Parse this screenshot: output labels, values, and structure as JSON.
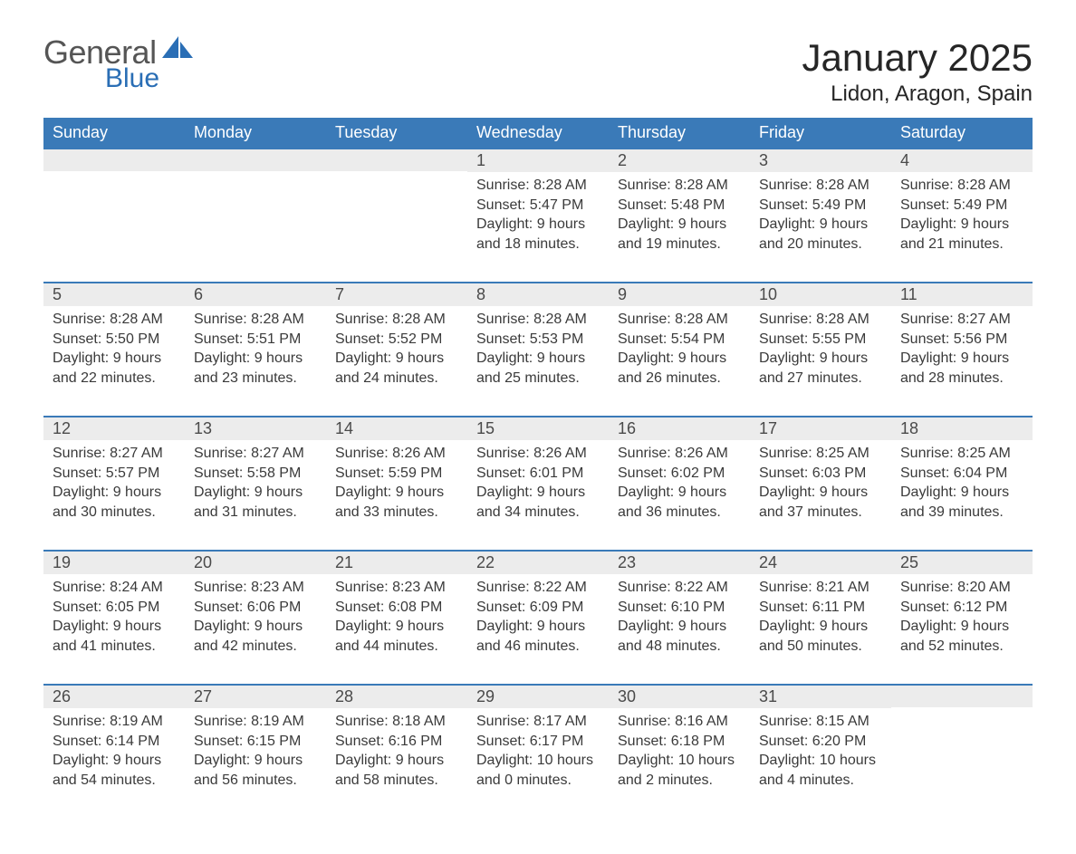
{
  "logo": {
    "general": "General",
    "blue": "Blue"
  },
  "title": "January 2025",
  "subtitle": "Lidon, Aragon, Spain",
  "styling": {
    "header_bg": "#3a7ab8",
    "header_text": "#ffffff",
    "daynum_bg": "#ececec",
    "week_border": "#3a7ab8",
    "title_fontsize": 42,
    "subtitle_fontsize": 24,
    "dayheader_fontsize": 18,
    "cell_fontsize": 16,
    "logo_blue_color": "#2a6eb5",
    "logo_gray_color": "#555555",
    "background": "#ffffff"
  },
  "day_names": [
    "Sunday",
    "Monday",
    "Tuesday",
    "Wednesday",
    "Thursday",
    "Friday",
    "Saturday"
  ],
  "weeks": [
    [
      {
        "day": "",
        "sunrise": "",
        "sunset": "",
        "daylight1": "",
        "daylight2": ""
      },
      {
        "day": "",
        "sunrise": "",
        "sunset": "",
        "daylight1": "",
        "daylight2": ""
      },
      {
        "day": "",
        "sunrise": "",
        "sunset": "",
        "daylight1": "",
        "daylight2": ""
      },
      {
        "day": "1",
        "sunrise": "Sunrise: 8:28 AM",
        "sunset": "Sunset: 5:47 PM",
        "daylight1": "Daylight: 9 hours",
        "daylight2": "and 18 minutes."
      },
      {
        "day": "2",
        "sunrise": "Sunrise: 8:28 AM",
        "sunset": "Sunset: 5:48 PM",
        "daylight1": "Daylight: 9 hours",
        "daylight2": "and 19 minutes."
      },
      {
        "day": "3",
        "sunrise": "Sunrise: 8:28 AM",
        "sunset": "Sunset: 5:49 PM",
        "daylight1": "Daylight: 9 hours",
        "daylight2": "and 20 minutes."
      },
      {
        "day": "4",
        "sunrise": "Sunrise: 8:28 AM",
        "sunset": "Sunset: 5:49 PM",
        "daylight1": "Daylight: 9 hours",
        "daylight2": "and 21 minutes."
      }
    ],
    [
      {
        "day": "5",
        "sunrise": "Sunrise: 8:28 AM",
        "sunset": "Sunset: 5:50 PM",
        "daylight1": "Daylight: 9 hours",
        "daylight2": "and 22 minutes."
      },
      {
        "day": "6",
        "sunrise": "Sunrise: 8:28 AM",
        "sunset": "Sunset: 5:51 PM",
        "daylight1": "Daylight: 9 hours",
        "daylight2": "and 23 minutes."
      },
      {
        "day": "7",
        "sunrise": "Sunrise: 8:28 AM",
        "sunset": "Sunset: 5:52 PM",
        "daylight1": "Daylight: 9 hours",
        "daylight2": "and 24 minutes."
      },
      {
        "day": "8",
        "sunrise": "Sunrise: 8:28 AM",
        "sunset": "Sunset: 5:53 PM",
        "daylight1": "Daylight: 9 hours",
        "daylight2": "and 25 minutes."
      },
      {
        "day": "9",
        "sunrise": "Sunrise: 8:28 AM",
        "sunset": "Sunset: 5:54 PM",
        "daylight1": "Daylight: 9 hours",
        "daylight2": "and 26 minutes."
      },
      {
        "day": "10",
        "sunrise": "Sunrise: 8:28 AM",
        "sunset": "Sunset: 5:55 PM",
        "daylight1": "Daylight: 9 hours",
        "daylight2": "and 27 minutes."
      },
      {
        "day": "11",
        "sunrise": "Sunrise: 8:27 AM",
        "sunset": "Sunset: 5:56 PM",
        "daylight1": "Daylight: 9 hours",
        "daylight2": "and 28 minutes."
      }
    ],
    [
      {
        "day": "12",
        "sunrise": "Sunrise: 8:27 AM",
        "sunset": "Sunset: 5:57 PM",
        "daylight1": "Daylight: 9 hours",
        "daylight2": "and 30 minutes."
      },
      {
        "day": "13",
        "sunrise": "Sunrise: 8:27 AM",
        "sunset": "Sunset: 5:58 PM",
        "daylight1": "Daylight: 9 hours",
        "daylight2": "and 31 minutes."
      },
      {
        "day": "14",
        "sunrise": "Sunrise: 8:26 AM",
        "sunset": "Sunset: 5:59 PM",
        "daylight1": "Daylight: 9 hours",
        "daylight2": "and 33 minutes."
      },
      {
        "day": "15",
        "sunrise": "Sunrise: 8:26 AM",
        "sunset": "Sunset: 6:01 PM",
        "daylight1": "Daylight: 9 hours",
        "daylight2": "and 34 minutes."
      },
      {
        "day": "16",
        "sunrise": "Sunrise: 8:26 AM",
        "sunset": "Sunset: 6:02 PM",
        "daylight1": "Daylight: 9 hours",
        "daylight2": "and 36 minutes."
      },
      {
        "day": "17",
        "sunrise": "Sunrise: 8:25 AM",
        "sunset": "Sunset: 6:03 PM",
        "daylight1": "Daylight: 9 hours",
        "daylight2": "and 37 minutes."
      },
      {
        "day": "18",
        "sunrise": "Sunrise: 8:25 AM",
        "sunset": "Sunset: 6:04 PM",
        "daylight1": "Daylight: 9 hours",
        "daylight2": "and 39 minutes."
      }
    ],
    [
      {
        "day": "19",
        "sunrise": "Sunrise: 8:24 AM",
        "sunset": "Sunset: 6:05 PM",
        "daylight1": "Daylight: 9 hours",
        "daylight2": "and 41 minutes."
      },
      {
        "day": "20",
        "sunrise": "Sunrise: 8:23 AM",
        "sunset": "Sunset: 6:06 PM",
        "daylight1": "Daylight: 9 hours",
        "daylight2": "and 42 minutes."
      },
      {
        "day": "21",
        "sunrise": "Sunrise: 8:23 AM",
        "sunset": "Sunset: 6:08 PM",
        "daylight1": "Daylight: 9 hours",
        "daylight2": "and 44 minutes."
      },
      {
        "day": "22",
        "sunrise": "Sunrise: 8:22 AM",
        "sunset": "Sunset: 6:09 PM",
        "daylight1": "Daylight: 9 hours",
        "daylight2": "and 46 minutes."
      },
      {
        "day": "23",
        "sunrise": "Sunrise: 8:22 AM",
        "sunset": "Sunset: 6:10 PM",
        "daylight1": "Daylight: 9 hours",
        "daylight2": "and 48 minutes."
      },
      {
        "day": "24",
        "sunrise": "Sunrise: 8:21 AM",
        "sunset": "Sunset: 6:11 PM",
        "daylight1": "Daylight: 9 hours",
        "daylight2": "and 50 minutes."
      },
      {
        "day": "25",
        "sunrise": "Sunrise: 8:20 AM",
        "sunset": "Sunset: 6:12 PM",
        "daylight1": "Daylight: 9 hours",
        "daylight2": "and 52 minutes."
      }
    ],
    [
      {
        "day": "26",
        "sunrise": "Sunrise: 8:19 AM",
        "sunset": "Sunset: 6:14 PM",
        "daylight1": "Daylight: 9 hours",
        "daylight2": "and 54 minutes."
      },
      {
        "day": "27",
        "sunrise": "Sunrise: 8:19 AM",
        "sunset": "Sunset: 6:15 PM",
        "daylight1": "Daylight: 9 hours",
        "daylight2": "and 56 minutes."
      },
      {
        "day": "28",
        "sunrise": "Sunrise: 8:18 AM",
        "sunset": "Sunset: 6:16 PM",
        "daylight1": "Daylight: 9 hours",
        "daylight2": "and 58 minutes."
      },
      {
        "day": "29",
        "sunrise": "Sunrise: 8:17 AM",
        "sunset": "Sunset: 6:17 PM",
        "daylight1": "Daylight: 10 hours",
        "daylight2": "and 0 minutes."
      },
      {
        "day": "30",
        "sunrise": "Sunrise: 8:16 AM",
        "sunset": "Sunset: 6:18 PM",
        "daylight1": "Daylight: 10 hours",
        "daylight2": "and 2 minutes."
      },
      {
        "day": "31",
        "sunrise": "Sunrise: 8:15 AM",
        "sunset": "Sunset: 6:20 PM",
        "daylight1": "Daylight: 10 hours",
        "daylight2": "and 4 minutes."
      },
      {
        "day": "",
        "sunrise": "",
        "sunset": "",
        "daylight1": "",
        "daylight2": ""
      }
    ]
  ]
}
